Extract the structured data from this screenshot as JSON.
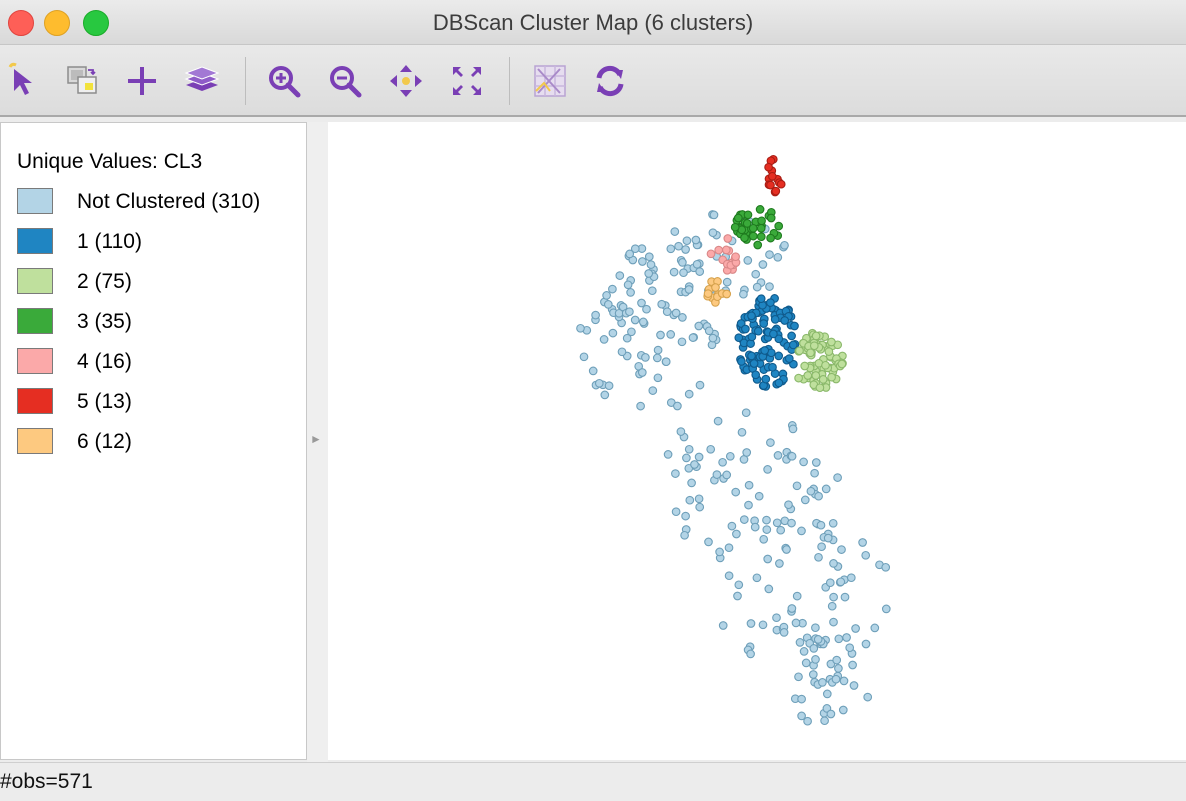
{
  "window": {
    "title": "DBScan Cluster Map (6 clusters)"
  },
  "toolbar": {
    "accent_color": "#7a3fb5",
    "highlight_color": "#f2c94c",
    "tools": [
      {
        "name": "select",
        "icon": "select-pointer-icon"
      },
      {
        "name": "copy-image",
        "icon": "copy-image-icon"
      },
      {
        "name": "add",
        "icon": "plus-icon"
      },
      {
        "name": "layers",
        "icon": "layers-icon"
      },
      {
        "name": "zoom-in",
        "icon": "zoom-in-icon"
      },
      {
        "name": "zoom-out",
        "icon": "zoom-out-icon"
      },
      {
        "name": "pan",
        "icon": "pan-icon"
      },
      {
        "name": "full-extent",
        "icon": "full-extent-icon"
      },
      {
        "name": "basemap",
        "icon": "basemap-icon"
      },
      {
        "name": "refresh",
        "icon": "refresh-icon"
      }
    ]
  },
  "legend": {
    "title": "Unique Values: CL3",
    "items": [
      {
        "label": "Not Clustered (310)",
        "color": "#b3d4e6"
      },
      {
        "label": "1 (110)",
        "color": "#1f85c2"
      },
      {
        "label": "2 (75)",
        "color": "#bfe09d"
      },
      {
        "label": "3 (35)",
        "color": "#3aaa3a"
      },
      {
        "label": "4 (16)",
        "color": "#fba9a9"
      },
      {
        "label": "5 (13)",
        "color": "#e52e22"
      },
      {
        "label": "6 (12)",
        "color": "#fdc980"
      }
    ]
  },
  "status": {
    "text": "#obs=571"
  }
}
